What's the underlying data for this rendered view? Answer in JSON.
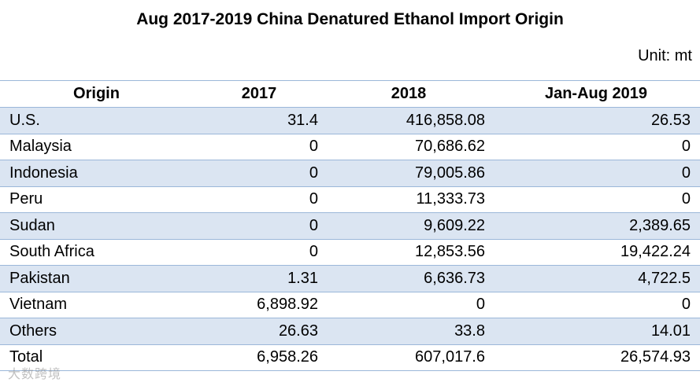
{
  "title": "Aug 2017-2019 China Denatured Ethanol Import Origin",
  "unit": "Unit: mt",
  "watermark": "大数跨境",
  "colors": {
    "band": "#dbe5f2",
    "rule": "#9bb7d9"
  },
  "chart_data": {
    "type": "table",
    "title": "Aug 2017-2019 China Denatured Ethanol Import Origin",
    "unit": "Unit: mt",
    "columns": [
      "Origin",
      "2017",
      "2018",
      "Jan-Aug 2019"
    ],
    "rows": [
      [
        "U.S.",
        "31.4",
        "416,858.08",
        "26.53"
      ],
      [
        "Malaysia",
        "0",
        "70,686.62",
        "0"
      ],
      [
        "Indonesia",
        "0",
        "79,005.86",
        "0"
      ],
      [
        "Peru",
        "0",
        "11,333.73",
        "0"
      ],
      [
        "Sudan",
        "0",
        "9,609.22",
        "2,389.65"
      ],
      [
        "South Africa",
        "0",
        "12,853.56",
        "19,422.24"
      ],
      [
        "Pakistan",
        "1.31",
        "6,636.73",
        "4,722.5"
      ],
      [
        "Vietnam",
        "6,898.92",
        "0",
        "0"
      ],
      [
        "Others",
        "26.63",
        "33.8",
        "14.01"
      ],
      [
        "Total",
        "6,958.26",
        "607,017.6",
        "26,574.93"
      ]
    ]
  }
}
